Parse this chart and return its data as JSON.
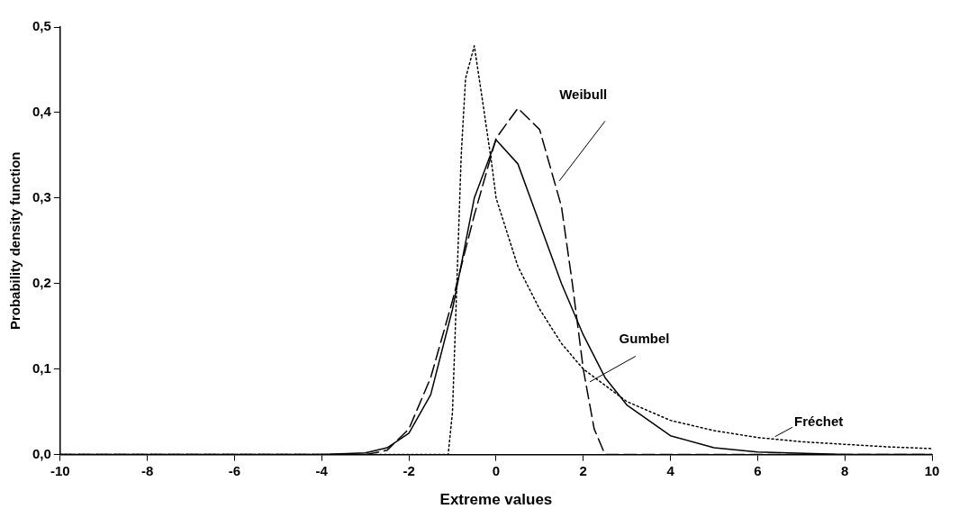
{
  "chart_data": {
    "type": "line",
    "xlabel": "Extreme values",
    "ylabel": "Probability density function",
    "xlim": [
      -10,
      10
    ],
    "xticks": [
      -10,
      -8,
      -6,
      -4,
      -2,
      0,
      2,
      4,
      6,
      8,
      10
    ],
    "ylim": [
      0,
      0.5
    ],
    "yticks": [
      {
        "value": 0,
        "label": "0,0"
      },
      {
        "value": 0.1,
        "label": "0,1"
      },
      {
        "value": 0.2,
        "label": "0,2"
      },
      {
        "value": 0.3,
        "label": "0,3"
      },
      {
        "value": 0.4,
        "label": "0,4"
      },
      {
        "value": 0.5,
        "label": "0,5"
      }
    ],
    "grid": false,
    "legend": false,
    "marker": "none",
    "series": [
      {
        "name": "Gumbel",
        "color": "#000000",
        "line_style": "solid",
        "x": [
          -10,
          -4,
          -3,
          -2.5,
          -2,
          -1.5,
          -1,
          -0.5,
          0,
          0.5,
          1,
          1.5,
          2,
          2.5,
          3,
          4,
          5,
          6,
          8,
          10
        ],
        "values": [
          0,
          0,
          0.002,
          0.008,
          0.025,
          0.07,
          0.17,
          0.3,
          0.368,
          0.34,
          0.27,
          0.2,
          0.14,
          0.09,
          0.058,
          0.022,
          0.008,
          0.003,
          0,
          0
        ]
      },
      {
        "name": "Weibull",
        "color": "#000000",
        "line_style": "dashed",
        "x": [
          -10,
          -3,
          -2.5,
          -2,
          -1.5,
          -1,
          -0.5,
          0,
          0.5,
          1,
          1.5,
          1.75,
          2,
          2.25,
          2.5,
          10
        ],
        "values": [
          0,
          0,
          0.005,
          0.03,
          0.09,
          0.18,
          0.28,
          0.37,
          0.405,
          0.38,
          0.29,
          0.2,
          0.1,
          0.03,
          0,
          0
        ]
      },
      {
        "name": "Fréchet",
        "color": "#000000",
        "line_style": "dotted",
        "x": [
          -10,
          -1.1,
          -1,
          -0.9,
          -0.8,
          -0.7,
          -0.5,
          -0.3,
          -0.1,
          0,
          0.5,
          1,
          1.5,
          2,
          3,
          4,
          5,
          6,
          7,
          8,
          9,
          10
        ],
        "values": [
          0,
          0,
          0.05,
          0.2,
          0.35,
          0.44,
          0.478,
          0.41,
          0.34,
          0.3,
          0.22,
          0.17,
          0.13,
          0.1,
          0.062,
          0.04,
          0.028,
          0.02,
          0.015,
          0.012,
          0.009,
          0.007
        ]
      }
    ]
  }
}
